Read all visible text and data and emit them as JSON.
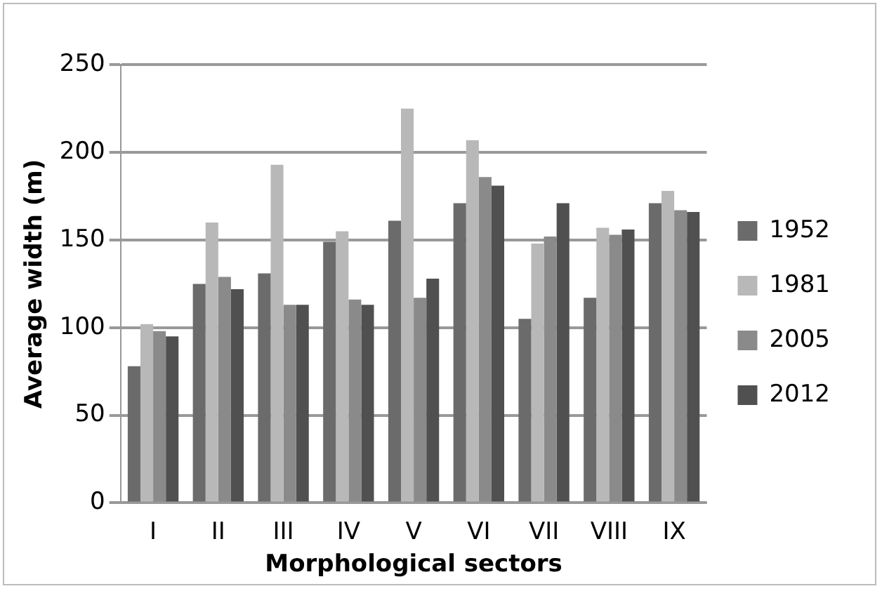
{
  "chart_data": {
    "type": "bar",
    "xlabel": "Morphological sectors",
    "ylabel": "Average width (m)",
    "categories": [
      "I",
      "II",
      "III",
      "IV",
      "V",
      "VI",
      "VII",
      "VIII",
      "IX"
    ],
    "series": [
      {
        "name": "1952",
        "color": "#6b6b6b",
        "values": [
          78,
          125,
          131,
          149,
          161,
          171,
          105,
          117,
          171
        ]
      },
      {
        "name": "1981",
        "color": "#b8b8b8",
        "values": [
          102,
          160,
          193,
          155,
          225,
          207,
          148,
          157,
          178
        ]
      },
      {
        "name": "2005",
        "color": "#8a8a8a",
        "values": [
          98,
          129,
          113,
          116,
          117,
          186,
          152,
          153,
          167
        ]
      },
      {
        "name": "2012",
        "color": "#505050",
        "values": [
          95,
          122,
          113,
          113,
          128,
          181,
          171,
          156,
          166
        ]
      }
    ],
    "ylim": [
      0,
      250
    ],
    "yticks": [
      0,
      50,
      100,
      150,
      200,
      250
    ],
    "grid": "y",
    "legend": "right"
  }
}
